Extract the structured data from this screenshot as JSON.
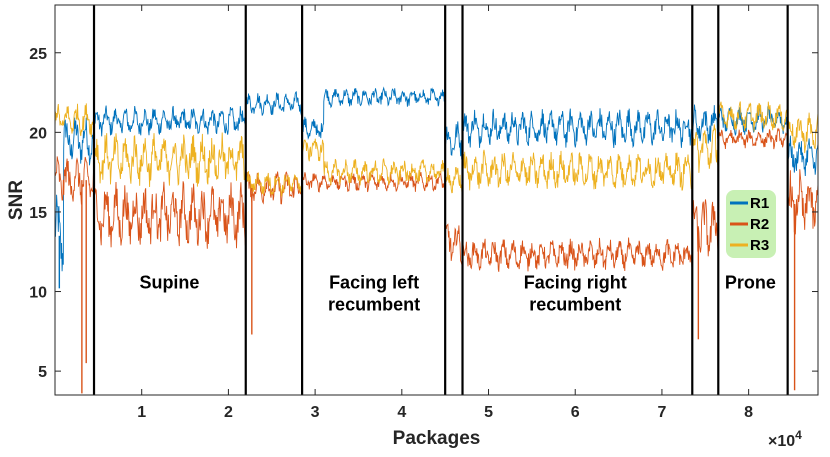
{
  "chart_data": {
    "type": "line",
    "xlabel": "Packages",
    "ylabel": "SNR",
    "x_multiplier": "×10",
    "x_multiplier_exp": "4",
    "xlim": [
      0,
      8.8
    ],
    "ylim": [
      3.5,
      28
    ],
    "x_ticks": [
      1,
      2,
      3,
      4,
      5,
      6,
      7,
      8
    ],
    "y_ticks": [
      5,
      10,
      15,
      20,
      25
    ],
    "grid": false,
    "legend_position": "right",
    "legend_bg": "#c8f0b4",
    "boundaries": [
      0.45,
      2.2,
      2.85,
      4.5,
      4.7,
      7.35,
      7.65,
      8.45
    ],
    "regions": [
      {
        "lines": [
          "Supine"
        ],
        "x": 1.32,
        "y": 10.2
      },
      {
        "lines": [
          "Facing left",
          "recumbent"
        ],
        "x": 3.68,
        "y": 10.2
      },
      {
        "lines": [
          "Facing right",
          "recumbent"
        ],
        "x": 6.0,
        "y": 10.2
      },
      {
        "lines": [
          "Prone"
        ],
        "x": 8.02,
        "y": 10.2
      }
    ],
    "series": [
      {
        "name": "R1",
        "color": "#0072BD",
        "segments": [
          {
            "x0": 0.0,
            "x1": 0.1,
            "mean": 13.5,
            "amp": 2.5
          },
          {
            "x0": 0.1,
            "x1": 0.45,
            "mean": 19.5,
            "amp": 1.5
          },
          {
            "x0": 0.45,
            "x1": 2.2,
            "mean": 20.7,
            "amp": 0.9
          },
          {
            "x0": 2.2,
            "x1": 2.85,
            "mean": 21.8,
            "amp": 0.7
          },
          {
            "x0": 2.85,
            "x1": 3.1,
            "mean": 20.2,
            "amp": 0.8
          },
          {
            "x0": 3.1,
            "x1": 4.5,
            "mean": 22.2,
            "amp": 0.6
          },
          {
            "x0": 4.5,
            "x1": 4.7,
            "mean": 19.5,
            "amp": 1.2
          },
          {
            "x0": 4.7,
            "x1": 7.35,
            "mean": 20.3,
            "amp": 1.2
          },
          {
            "x0": 7.35,
            "x1": 7.65,
            "mean": 20.5,
            "amp": 1.2
          },
          {
            "x0": 7.65,
            "x1": 8.45,
            "mean": 20.8,
            "amp": 0.9
          },
          {
            "x0": 8.45,
            "x1": 8.8,
            "mean": 18.5,
            "amp": 1.2
          }
        ]
      },
      {
        "name": "R2",
        "color": "#D95319",
        "segments": [
          {
            "x0": 0.0,
            "x1": 0.45,
            "mean": 17.0,
            "amp": 1.5
          },
          {
            "x0": 0.45,
            "x1": 2.2,
            "mean": 14.8,
            "amp": 2.0
          },
          {
            "x0": 2.2,
            "x1": 2.85,
            "mean": 16.5,
            "amp": 1.0
          },
          {
            "x0": 2.85,
            "x1": 4.5,
            "mean": 16.9,
            "amp": 0.6
          },
          {
            "x0": 4.5,
            "x1": 4.7,
            "mean": 13.0,
            "amp": 1.5
          },
          {
            "x0": 4.7,
            "x1": 7.35,
            "mean": 12.3,
            "amp": 1.0
          },
          {
            "x0": 7.35,
            "x1": 7.65,
            "mean": 14.0,
            "amp": 2.0
          },
          {
            "x0": 7.65,
            "x1": 8.45,
            "mean": 19.6,
            "amp": 0.6
          },
          {
            "x0": 8.45,
            "x1": 8.8,
            "mean": 15.5,
            "amp": 2.0
          }
        ]
      },
      {
        "name": "R3",
        "color": "#EDB120",
        "segments": [
          {
            "x0": 0.0,
            "x1": 0.45,
            "mean": 20.8,
            "amp": 1.0
          },
          {
            "x0": 0.45,
            "x1": 2.2,
            "mean": 18.3,
            "amp": 1.6
          },
          {
            "x0": 2.2,
            "x1": 2.85,
            "mean": 16.8,
            "amp": 0.8
          },
          {
            "x0": 2.85,
            "x1": 3.1,
            "mean": 19.0,
            "amp": 0.8
          },
          {
            "x0": 3.1,
            "x1": 4.5,
            "mean": 17.5,
            "amp": 0.8
          },
          {
            "x0": 4.5,
            "x1": 4.7,
            "mean": 17.0,
            "amp": 1.0
          },
          {
            "x0": 4.7,
            "x1": 7.35,
            "mean": 17.6,
            "amp": 1.2
          },
          {
            "x0": 7.35,
            "x1": 7.65,
            "mean": 19.0,
            "amp": 1.5
          },
          {
            "x0": 7.65,
            "x1": 8.45,
            "mean": 21.0,
            "amp": 0.9
          },
          {
            "x0": 8.45,
            "x1": 8.8,
            "mean": 20.0,
            "amp": 1.2
          }
        ]
      }
    ],
    "spikes": [
      {
        "series": "R2",
        "x": 0.31,
        "y": 3.6
      },
      {
        "series": "R2",
        "x": 0.36,
        "y": 5.5
      },
      {
        "series": "R2",
        "x": 2.27,
        "y": 7.3
      },
      {
        "series": "R2",
        "x": 7.42,
        "y": 7.0
      },
      {
        "series": "R2",
        "x": 8.53,
        "y": 3.8
      },
      {
        "series": "R1",
        "x": 0.05,
        "y": 10.2
      }
    ]
  }
}
